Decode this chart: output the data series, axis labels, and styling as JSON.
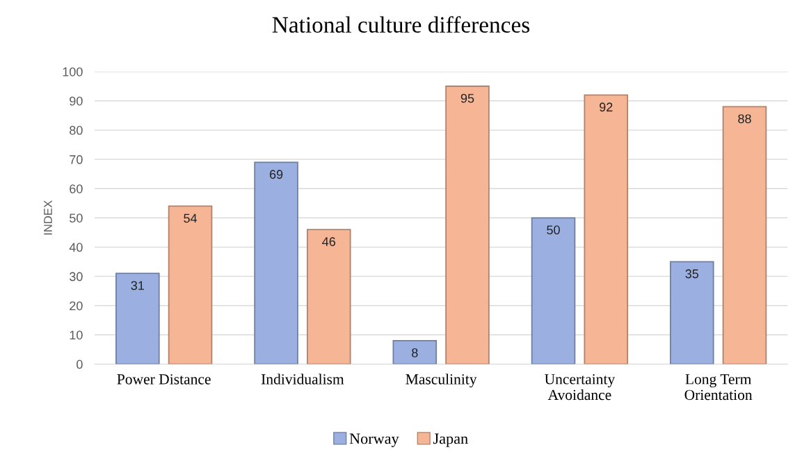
{
  "chart_data": {
    "type": "bar",
    "title": "National culture differences",
    "ylabel": "INDEX",
    "categories": [
      "Power Distance",
      "Individualism",
      "Masculinity",
      "Uncertainty\nAvoidance",
      "Long Term\nOrientation"
    ],
    "series": [
      {
        "name": "Norway",
        "color": "#9bb0e0",
        "values": [
          31,
          69,
          8,
          50,
          35
        ]
      },
      {
        "name": "Japan",
        "color": "#f6b595",
        "values": [
          54,
          46,
          95,
          92,
          88
        ]
      }
    ],
    "ylim": [
      0,
      100
    ],
    "yticks": [
      0,
      10,
      20,
      30,
      40,
      50,
      60,
      70,
      80,
      90,
      100
    ],
    "grid": "y",
    "legend": "bottom",
    "data_labels": true
  }
}
